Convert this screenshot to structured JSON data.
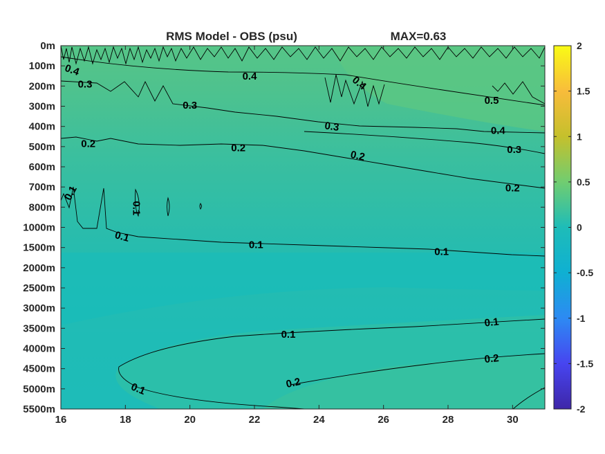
{
  "chart_data": {
    "type": "heatmap",
    "title": "RMS Model - OBS (psu)",
    "max_label": "MAX=0.63",
    "xlabel": "",
    "ylabel": "",
    "xlim": [
      16,
      31
    ],
    "x_ticks": [
      16,
      18,
      20,
      22,
      24,
      26,
      28,
      30
    ],
    "y_tick_labels": [
      "0m",
      "100m",
      "200m",
      "300m",
      "400m",
      "500m",
      "600m",
      "700m",
      "800m",
      "1000m",
      "1500m",
      "2000m",
      "2500m",
      "3000m",
      "3500m",
      "4000m",
      "4500m",
      "5000m",
      "5500m"
    ],
    "colorbar": {
      "clim": [
        -2,
        2
      ],
      "ticks": [
        2,
        1.5,
        1,
        0.5,
        0,
        -0.5,
        -1,
        -1.5,
        -2
      ],
      "tick_labels": [
        "2",
        "1.5",
        "1",
        "0.5",
        "0",
        "-0.5",
        "-1",
        "-1.5",
        "-2"
      ],
      "colormap": "parula",
      "colors": [
        "#3e26a8",
        "#4745f0",
        "#2d8af3",
        "#0fb0d2",
        "#2ec6ad",
        "#71cd70",
        "#c5c02c",
        "#f8bc3b",
        "#f9fb15"
      ]
    },
    "contour_levels": [
      0.1,
      0.2,
      0.3,
      0.4,
      0.5
    ],
    "contour_labels": [
      {
        "text": "0.4",
        "x": 16.35,
        "y": 1.2,
        "rot": 20
      },
      {
        "text": "0.3",
        "x": 16.75,
        "y": 1.9,
        "rot": 0
      },
      {
        "text": "0.4",
        "x": 21.85,
        "y": 1.5,
        "rot": 0
      },
      {
        "text": "0.4",
        "x": 25.25,
        "y": 1.85,
        "rot": 40
      },
      {
        "text": "0.3",
        "x": 20.0,
        "y": 2.95,
        "rot": 0
      },
      {
        "text": "0.3",
        "x": 24.4,
        "y": 4.0,
        "rot": 8
      },
      {
        "text": "0.5",
        "x": 29.35,
        "y": 2.7,
        "rot": 0
      },
      {
        "text": "0.4",
        "x": 29.55,
        "y": 4.2,
        "rot": 0
      },
      {
        "text": "0.3",
        "x": 30.05,
        "y": 5.15,
        "rot": 0
      },
      {
        "text": "0.2",
        "x": 16.85,
        "y": 4.85,
        "rot": 0
      },
      {
        "text": "0.2",
        "x": 21.5,
        "y": 5.05,
        "rot": 0
      },
      {
        "text": "0.2",
        "x": 25.2,
        "y": 5.45,
        "rot": 12
      },
      {
        "text": "0.2",
        "x": 30.0,
        "y": 7.05,
        "rot": 0
      },
      {
        "text": "0.1",
        "x": 16.3,
        "y": 7.3,
        "rot": -62
      },
      {
        "text": "0.1",
        "x": 18.35,
        "y": 8.05,
        "rot": 90
      },
      {
        "text": "0.1",
        "x": 17.9,
        "y": 9.45,
        "rot": 15
      },
      {
        "text": "0.1",
        "x": 22.05,
        "y": 9.85,
        "rot": 0
      },
      {
        "text": "0.1",
        "x": 27.8,
        "y": 10.2,
        "rot": 0
      },
      {
        "text": "0.1",
        "x": 29.35,
        "y": 13.7,
        "rot": -6
      },
      {
        "text": "0.1",
        "x": 23.05,
        "y": 14.3,
        "rot": 0
      },
      {
        "text": "0.2",
        "x": 29.35,
        "y": 15.5,
        "rot": -6
      },
      {
        "text": "0.2",
        "x": 23.2,
        "y": 16.7,
        "rot": -12
      },
      {
        "text": "0.1",
        "x": 18.4,
        "y": 17.0,
        "rot": 22
      }
    ]
  }
}
